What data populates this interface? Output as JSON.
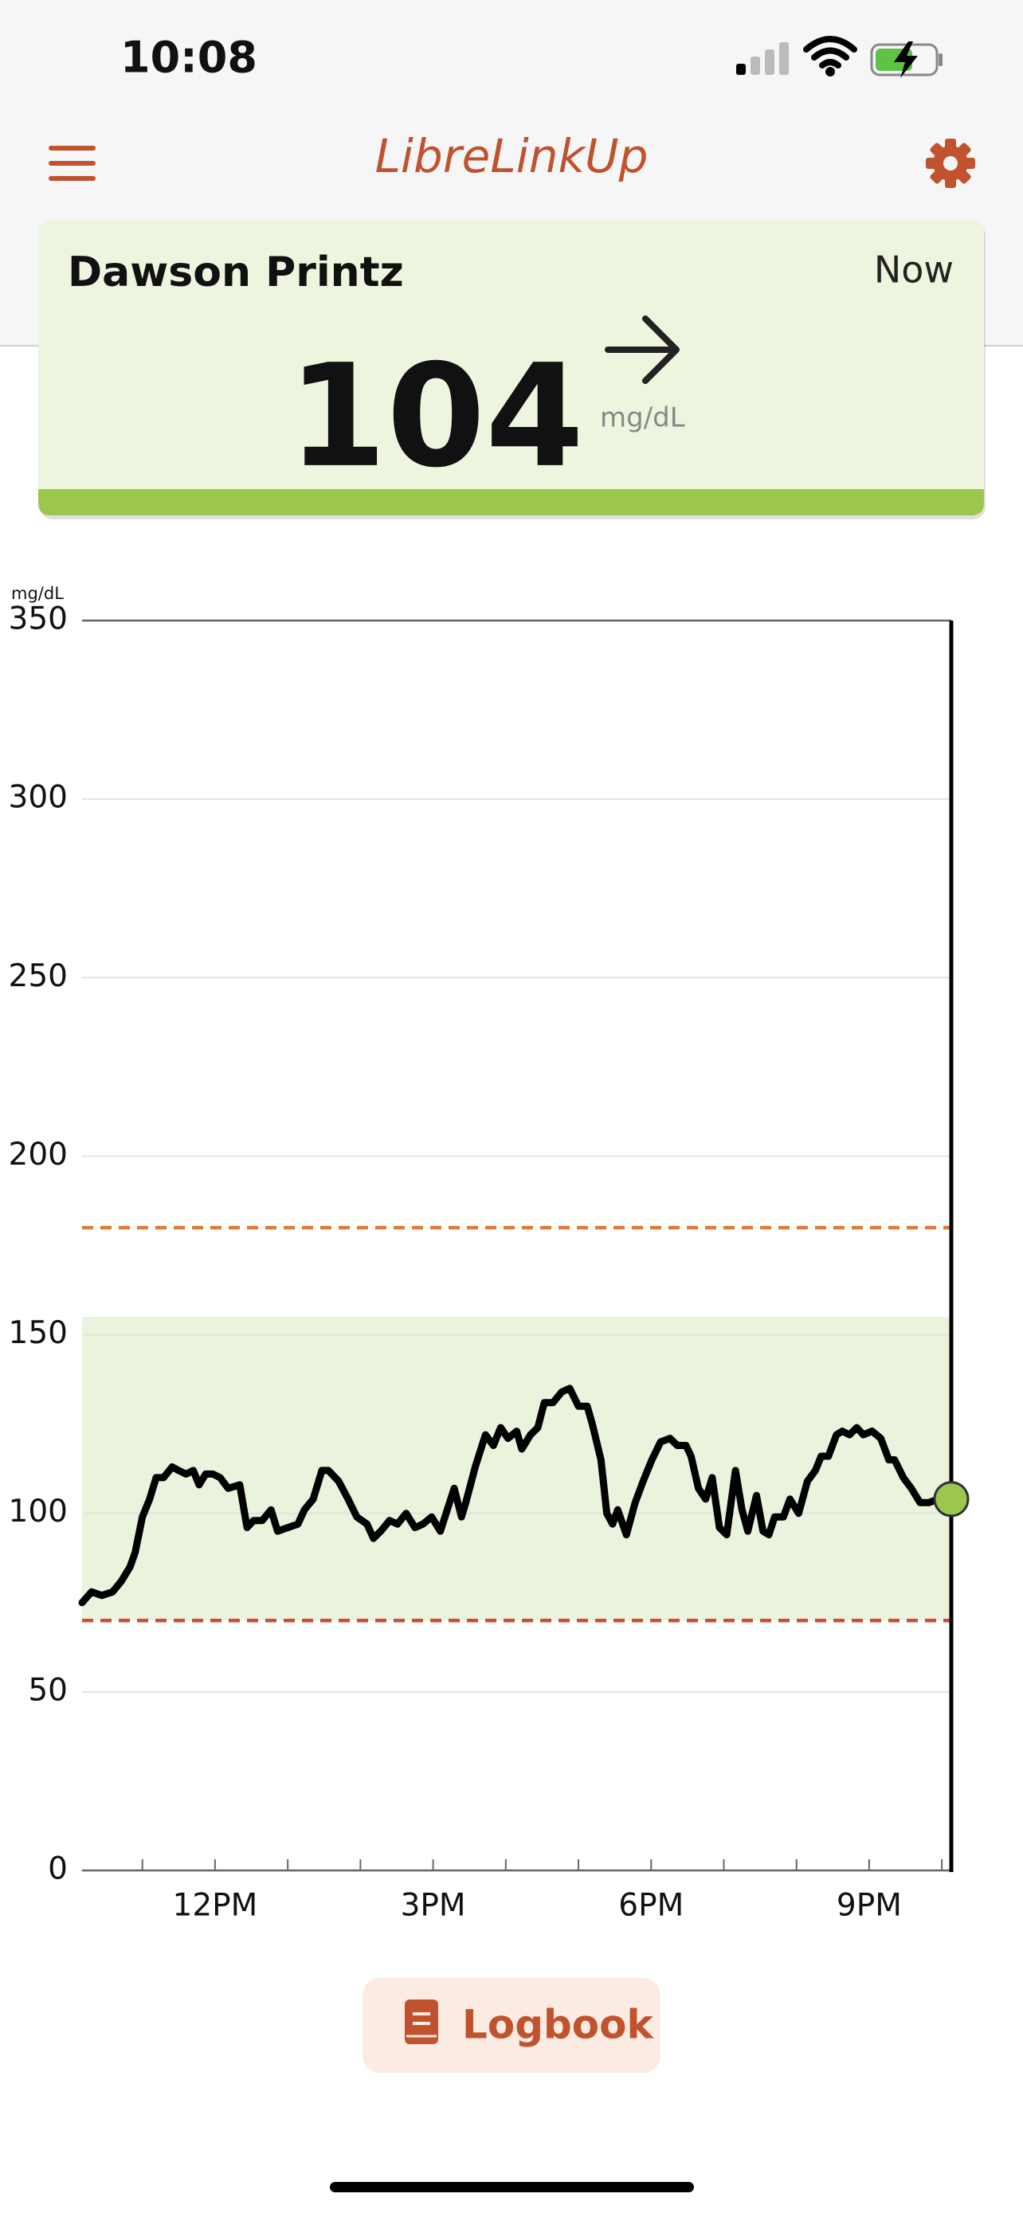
{
  "status_bar": {
    "time": "10:08"
  },
  "header": {
    "title": "LibreLinkUp"
  },
  "card": {
    "name": "Dawson Printz",
    "time": "Now",
    "value": 104,
    "unit": "mg/dL"
  },
  "chart_data": {
    "type": "line",
    "ylabel": "mg/dL",
    "ylim": [
      0,
      350
    ],
    "yticks": [
      0,
      50,
      100,
      150,
      200,
      250,
      300,
      350
    ],
    "xlim": [
      10.17,
      22.13
    ],
    "xticks": [
      {
        "value": 12,
        "label": "12PM"
      },
      {
        "value": 15,
        "label": "3PM"
      },
      {
        "value": 18,
        "label": "6PM"
      },
      {
        "value": 21,
        "label": "9PM"
      }
    ],
    "minor_xticks": [
      11,
      13,
      14,
      16,
      17,
      19,
      20,
      22
    ],
    "grid": true,
    "target_range": [
      70,
      155
    ],
    "target_color": "#eaf3dc",
    "high_line": 180,
    "high_color": "#e07b39",
    "low_line": 70,
    "low_color": "#d24a3a",
    "color": "#000000",
    "marker_color": "#9bc84c",
    "x": [
      10.17,
      10.3,
      10.44,
      10.59,
      10.71,
      10.83,
      10.9,
      11.0,
      11.1,
      11.19,
      11.29,
      11.41,
      11.5,
      11.6,
      11.7,
      11.78,
      11.87,
      11.97,
      12.07,
      12.18,
      12.34,
      12.44,
      12.53,
      12.65,
      12.77,
      12.86,
      13.0,
      13.14,
      13.23,
      13.35,
      13.47,
      13.56,
      13.7,
      13.83,
      13.95,
      14.09,
      14.18,
      14.28,
      14.4,
      14.51,
      14.63,
      14.75,
      14.86,
      14.98,
      15.1,
      15.21,
      15.29,
      15.39,
      15.45,
      15.58,
      15.72,
      15.83,
      15.93,
      16.03,
      16.15,
      16.22,
      16.34,
      16.44,
      16.53,
      16.65,
      16.77,
      16.88,
      17.0,
      17.12,
      17.19,
      17.31,
      17.39,
      17.47,
      17.54,
      17.66,
      17.78,
      17.89,
      18.01,
      18.13,
      18.26,
      18.36,
      18.48,
      18.55,
      18.65,
      18.75,
      18.84,
      18.94,
      19.04,
      19.16,
      19.25,
      19.33,
      19.45,
      19.54,
      19.62,
      19.7,
      19.82,
      19.91,
      20.03,
      20.15,
      20.26,
      20.34,
      20.44,
      20.55,
      20.63,
      20.73,
      20.83,
      20.92,
      21.04,
      21.16,
      21.27,
      21.35,
      21.47,
      21.58,
      21.7,
      21.82,
      21.95,
      22.13
    ],
    "values": [
      75,
      78,
      77,
      78,
      81,
      85,
      89,
      99,
      104,
      110,
      110,
      113,
      112,
      111,
      112,
      108,
      111,
      111,
      110,
      107,
      108,
      96,
      98,
      98,
      101,
      95,
      96,
      97,
      101,
      104,
      112,
      112,
      109,
      104,
      99,
      97,
      93,
      95,
      98,
      97,
      100,
      96,
      97,
      99,
      95,
      102,
      107,
      99,
      103,
      113,
      122,
      119,
      124,
      121,
      123,
      118,
      122,
      124,
      131,
      131,
      134,
      135,
      130,
      130,
      125,
      115,
      100,
      97,
      101,
      94,
      103,
      109,
      115,
      120,
      121,
      119,
      119,
      116,
      107,
      104,
      110,
      96,
      94,
      112,
      101,
      95,
      105,
      95,
      94,
      99,
      99,
      104,
      100,
      109,
      112,
      116,
      116,
      122,
      123,
      122,
      124,
      122,
      123,
      121,
      115,
      115,
      110,
      107,
      103,
      103,
      104,
      104
    ]
  },
  "button": {
    "label": "Logbook"
  }
}
